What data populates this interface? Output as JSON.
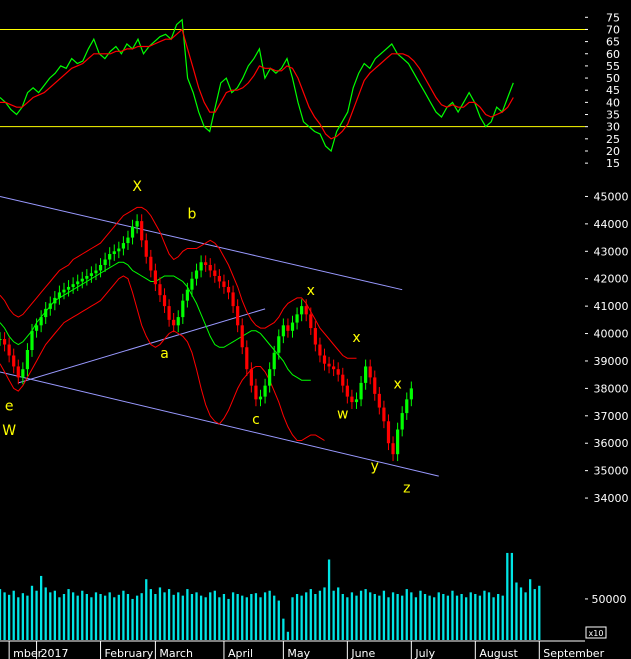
{
  "colors": {
    "background": "#000000",
    "axis_text": "#ffffff",
    "level_line": "#ffff00",
    "rsi_line": "#00ff00",
    "signal_line": "#ff0000",
    "candle_up": "#00ff00",
    "candle_down": "#ff0000",
    "bollinger": "#ff0000",
    "ma_line": "#00ff00",
    "channel_line": "#9999ff",
    "wave_label": "#ffff00",
    "volume": "#00e5e5"
  },
  "chart_data": [
    {
      "type": "line",
      "panel": "oscillator",
      "y_ticks": [
        "75",
        "70",
        "65",
        "60",
        "55",
        "50",
        "45",
        "40",
        "35",
        "30",
        "25",
        "20",
        "15"
      ],
      "ylim": [
        13,
        78
      ],
      "levels": [
        70,
        30
      ],
      "x_index_range": [
        0,
        106
      ],
      "series": [
        {
          "color": "#00ff00",
          "values": [
            42,
            40,
            37,
            35,
            38,
            44,
            46,
            44,
            47,
            50,
            52,
            55,
            54,
            58,
            56,
            57,
            62,
            66,
            60,
            58,
            61,
            63,
            60,
            64,
            62,
            66,
            60,
            63,
            65,
            67,
            68,
            66,
            72,
            74,
            50,
            44,
            36,
            30,
            28,
            38,
            48,
            50,
            44,
            46,
            50,
            55,
            58,
            62,
            50,
            54,
            52,
            54,
            58,
            50,
            40,
            32,
            30,
            28,
            27,
            22,
            20,
            28,
            32,
            36,
            46,
            52,
            56,
            54,
            58,
            60,
            62,
            64,
            60,
            58,
            56,
            52,
            48,
            44,
            40,
            36,
            34,
            38,
            40,
            36,
            40,
            44,
            40,
            34,
            30,
            32,
            38,
            36,
            42,
            48
          ]
        },
        {
          "color": "#ff0000",
          "values": [
            40,
            40,
            39,
            38,
            38,
            40,
            42,
            43,
            44,
            46,
            48,
            50,
            52,
            54,
            55,
            56,
            58,
            60,
            60,
            60,
            60,
            61,
            61,
            62,
            62,
            63,
            63,
            63,
            64,
            65,
            66,
            66,
            68,
            70,
            62,
            54,
            46,
            40,
            36,
            36,
            40,
            44,
            45,
            45,
            46,
            48,
            51,
            55,
            54,
            54,
            53,
            53,
            55,
            54,
            50,
            44,
            38,
            34,
            31,
            27,
            25,
            26,
            28,
            31,
            37,
            43,
            49,
            52,
            54,
            56,
            58,
            60,
            60,
            60,
            59,
            57,
            54,
            50,
            46,
            42,
            39,
            38,
            39,
            38,
            38,
            40,
            40,
            38,
            35,
            34,
            35,
            36,
            38,
            42
          ]
        }
      ]
    },
    {
      "type": "line",
      "panel": "price",
      "y_ticks": [
        "45000",
        "44000",
        "43000",
        "42000",
        "41000",
        "40000",
        "39000",
        "38000",
        "37000",
        "36000",
        "35000",
        "34000"
      ],
      "ylim": [
        33200,
        45600
      ],
      "x_ticks": [
        "mber",
        "2017",
        "February",
        "March",
        "April",
        "May",
        "June",
        "July",
        "August",
        "September"
      ],
      "x_tick_positions": [
        2,
        8,
        22,
        34,
        49,
        62,
        76,
        90,
        104,
        118
      ],
      "x_index_range": [
        0,
        128
      ],
      "close": [
        39800,
        39600,
        39200,
        38800,
        38400,
        38700,
        39400,
        40100,
        40300,
        40600,
        40900,
        41100,
        41300,
        41500,
        41600,
        41700,
        41800,
        41900,
        42000,
        42100,
        42200,
        42300,
        42500,
        42700,
        42900,
        43000,
        43100,
        43300,
        43500,
        43900,
        44100,
        43400,
        42800,
        42300,
        41800,
        41400,
        41000,
        40500,
        40300,
        40600,
        41200,
        41600,
        42000,
        42300,
        42600,
        42500,
        42300,
        42100,
        41900,
        41700,
        41500,
        41000,
        40300,
        39500,
        38700,
        38100,
        37600,
        37700,
        38100,
        38700,
        39300,
        39900,
        40300,
        40100,
        40400,
        40700,
        41000,
        40700,
        40200,
        39600,
        39200,
        38900,
        38800,
        38700,
        38500,
        38100,
        37700,
        37500,
        37600,
        38200,
        38800,
        38400,
        37800,
        37300,
        36800,
        36000,
        35600,
        36500,
        37100,
        37600,
        38000
      ],
      "bollinger_upper": [
        41400,
        41200,
        40900,
        40700,
        40600,
        40700,
        40900,
        41100,
        41300,
        41500,
        41700,
        41900,
        42100,
        42300,
        42400,
        42500,
        42700,
        42800,
        42900,
        43000,
        43100,
        43200,
        43300,
        43500,
        43700,
        43900,
        44100,
        44300,
        44400,
        44500,
        44600,
        44600,
        44500,
        44300,
        44000,
        43700,
        43300,
        42900,
        42700,
        42800,
        43000,
        43100,
        43100,
        43100,
        43200,
        43300,
        43400,
        43300,
        43100,
        42800,
        42500,
        42100,
        41700,
        41200,
        40800,
        40500,
        40300,
        40200,
        40200,
        40300,
        40400,
        40600,
        40900,
        41100,
        41200,
        41300,
        41300,
        41100,
        40800,
        40500,
        40200,
        40000,
        39800,
        39600,
        39400,
        39200,
        39100,
        39100,
        39100
      ],
      "bollinger_lower": [
        38900,
        38600,
        38300,
        38000,
        37900,
        38100,
        38400,
        38700,
        39000,
        39300,
        39600,
        39800,
        40000,
        40200,
        40400,
        40500,
        40600,
        40700,
        40800,
        40900,
        41000,
        41100,
        41200,
        41400,
        41600,
        41800,
        42000,
        42100,
        42000,
        41500,
        40900,
        40300,
        39900,
        39600,
        39500,
        39600,
        39800,
        40000,
        40100,
        40000,
        39900,
        39700,
        39300,
        38700,
        38000,
        37400,
        37000,
        36800,
        36700,
        36900,
        37200,
        37600,
        38000,
        38300,
        38500,
        38700,
        38800,
        38800,
        38600,
        38300,
        37900,
        37500,
        37000,
        36600,
        36300,
        36100,
        36100,
        36200,
        36300,
        36300,
        36200,
        36100
      ],
      "moving_average": [
        40400,
        40200,
        39900,
        39700,
        39600,
        39700,
        39900,
        40100,
        40400,
        40600,
        40800,
        41000,
        41200,
        41300,
        41400,
        41500,
        41600,
        41700,
        41800,
        41900,
        42000,
        42100,
        42200,
        42300,
        42400,
        42500,
        42600,
        42600,
        42500,
        42300,
        42200,
        42100,
        42000,
        41900,
        41900,
        42000,
        42100,
        42100,
        42100,
        42000,
        41900,
        41700,
        41400,
        41100,
        40700,
        40300,
        39900,
        39600,
        39500,
        39500,
        39600,
        39700,
        39800,
        39900,
        40000,
        40100,
        40100,
        40000,
        39800,
        39600,
        39400,
        39200,
        39000,
        38700,
        38500,
        38400,
        38300,
        38300,
        38300
      ]
    },
    {
      "type": "bar",
      "panel": "volume",
      "y_ticks": [
        "50000"
      ],
      "scale_label": "x10",
      "ylim": [
        0,
        140000
      ],
      "x_index_range": [
        0,
        128
      ],
      "values": [
        62000,
        58000,
        55000,
        60000,
        52000,
        57000,
        54000,
        66000,
        60000,
        78000,
        64000,
        58000,
        60000,
        52000,
        56000,
        62000,
        58000,
        54000,
        60000,
        56000,
        52000,
        58000,
        56000,
        54000,
        58000,
        52000,
        55000,
        60000,
        56000,
        50000,
        54000,
        57000,
        74000,
        62000,
        56000,
        64000,
        58000,
        62000,
        55000,
        58000,
        54000,
        62000,
        56000,
        58000,
        54000,
        52000,
        58000,
        60000,
        52000,
        56000,
        50000,
        58000,
        56000,
        54000,
        52000,
        56000,
        57000,
        52000,
        58000,
        60000,
        54000,
        48000,
        26000,
        10000,
        52000,
        56000,
        54000,
        58000,
        62000,
        56000,
        60000,
        64000,
        98000,
        60000,
        64000,
        56000,
        52000,
        58000,
        54000,
        60000,
        62000,
        58000,
        56000,
        54000,
        60000,
        52000,
        58000,
        56000,
        54000,
        62000,
        58000,
        52000,
        60000,
        56000,
        54000,
        52000,
        58000,
        56000,
        54000,
        60000,
        54000,
        56000,
        52000,
        58000,
        56000,
        54000,
        60000,
        58000,
        52000,
        56000,
        54000,
        106000,
        106000,
        70000,
        64000,
        58000,
        74000,
        62000,
        66000
      ]
    }
  ],
  "annotations": [
    {
      "text": "X",
      "price": 45200,
      "index": 30
    },
    {
      "text": "b",
      "price": 44200,
      "index": 42
    },
    {
      "text": "x",
      "price": 41400,
      "index": 68
    },
    {
      "text": "a",
      "price": 39100,
      "index": 36
    },
    {
      "text": "x",
      "price": 39700,
      "index": 78
    },
    {
      "text": "x",
      "price": 38000,
      "index": 87
    },
    {
      "text": "e",
      "price": 37200,
      "index": 2
    },
    {
      "text": "w",
      "price": 36900,
      "index": 75
    },
    {
      "text": "c",
      "price": 36700,
      "index": 56
    },
    {
      "text": "W",
      "price": 36300,
      "index": 2
    },
    {
      "text": "y",
      "price": 35000,
      "index": 82
    },
    {
      "text": "z",
      "price": 34200,
      "index": 89
    }
  ]
}
